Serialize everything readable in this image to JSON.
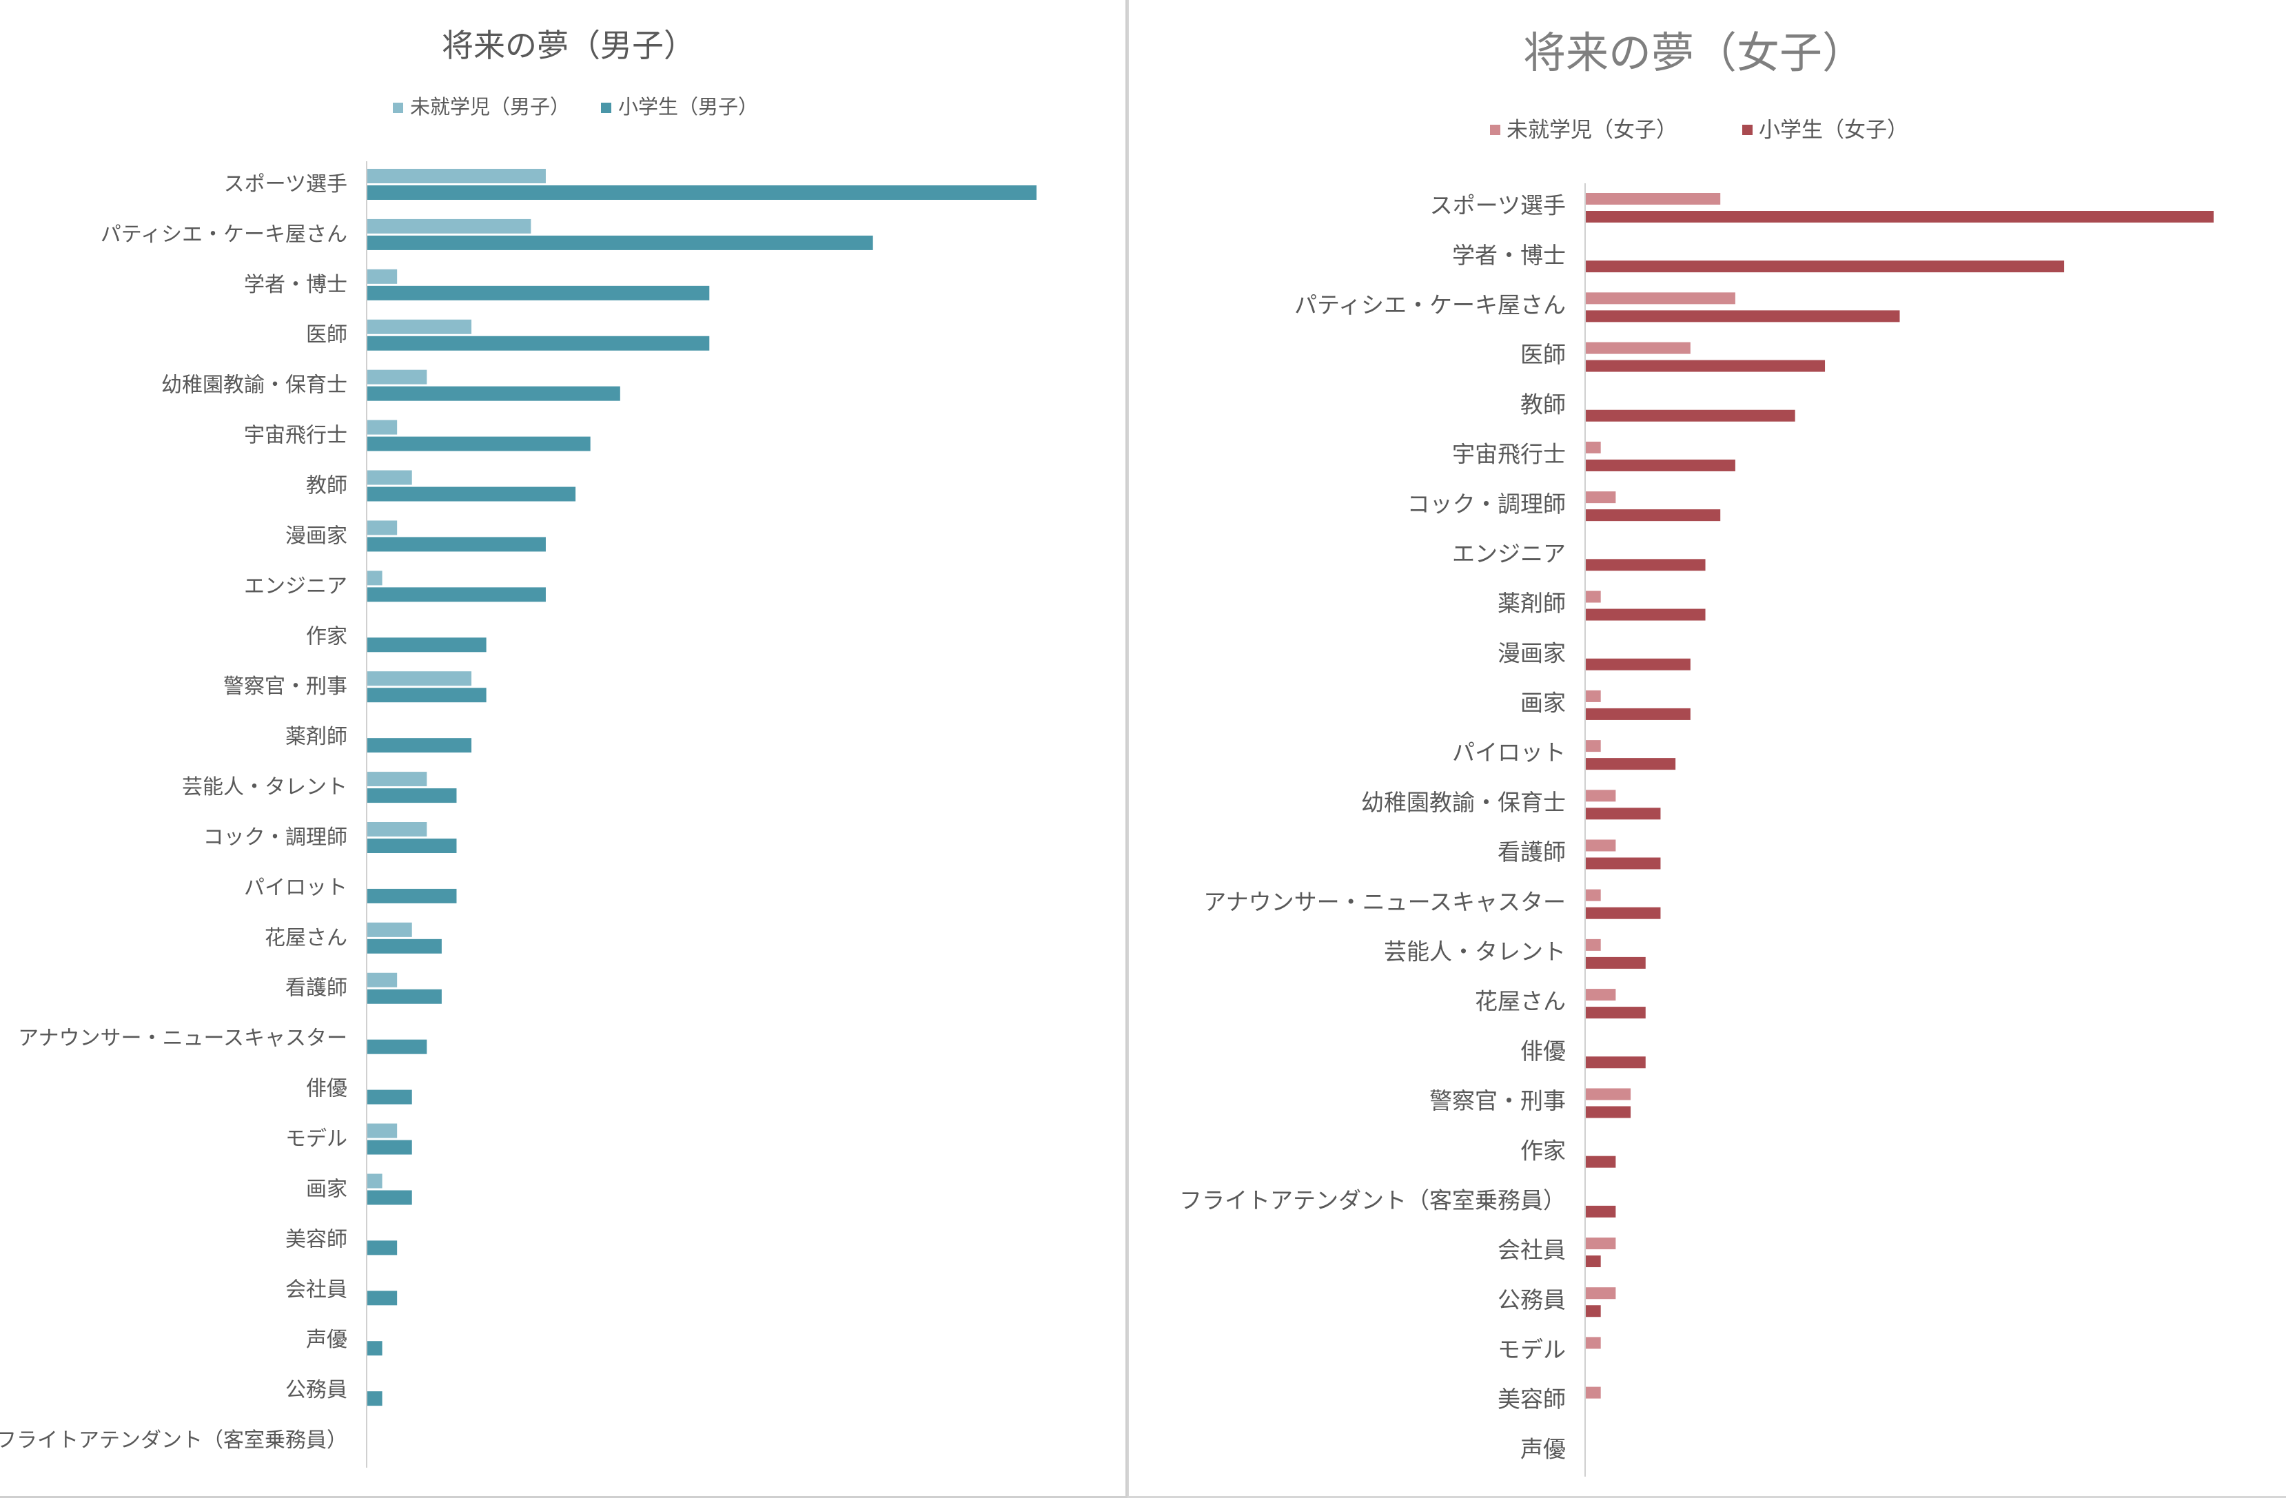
{
  "chart_data": [
    {
      "type": "bar",
      "orientation": "horizontal",
      "title": "将来の夢（男子）",
      "xlabel": "",
      "ylabel": "",
      "xlim": [
        0,
        45
      ],
      "grid": false,
      "legend_position": "top",
      "categories": [
        "スポーツ選手",
        "パティシエ・ケーキ屋さん",
        "学者・博士",
        "医師",
        "幼稚園教諭・保育士",
        "宇宙飛行士",
        "教師",
        "漫画家",
        "エンジニア",
        "作家",
        "警察官・刑事",
        "薬剤師",
        "芸能人・タレント",
        "コック・調理師",
        "パイロット",
        "花屋さん",
        "看護師",
        "アナウンサー・ニュースキャスター",
        "俳優",
        "モデル",
        "画家",
        "美容師",
        "会社員",
        "声優",
        "公務員",
        "フライトアテンダント（客室乗務員）"
      ],
      "series": [
        {
          "name": "未就学児（男子）",
          "color": "#8bbccb",
          "values": [
            12,
            11,
            2,
            7,
            4,
            2,
            3,
            2,
            1,
            0,
            7,
            0,
            4,
            4,
            0,
            3,
            2,
            0,
            0,
            2,
            1,
            0,
            0,
            0,
            0,
            0
          ]
        },
        {
          "name": "小学生（男子）",
          "color": "#4a96a8",
          "values": [
            45,
            34,
            23,
            23,
            17,
            15,
            14,
            12,
            12,
            8,
            8,
            7,
            6,
            6,
            6,
            5,
            5,
            4,
            3,
            3,
            3,
            2,
            2,
            1,
            1,
            0
          ]
        }
      ]
    },
    {
      "type": "bar",
      "orientation": "horizontal",
      "title": "将来の夢（女子）",
      "xlabel": "",
      "ylabel": "",
      "xlim": [
        0,
        42
      ],
      "grid": false,
      "legend_position": "top",
      "categories": [
        "スポーツ選手",
        "学者・博士",
        "パティシエ・ケーキ屋さん",
        "医師",
        "教師",
        "宇宙飛行士",
        "コック・調理師",
        "エンジニア",
        "薬剤師",
        "漫画家",
        "画家",
        "パイロット",
        "幼稚園教諭・保育士",
        "看護師",
        "アナウンサー・ニュースキャスター",
        "芸能人・タレント",
        "花屋さん",
        "俳優",
        "警察官・刑事",
        "作家",
        "フライトアテンダント（客室乗務員）",
        "会社員",
        "公務員",
        "モデル",
        "美容師",
        "声優"
      ],
      "series": [
        {
          "name": "未就学児（女子）",
          "color": "#d08a8f",
          "values": [
            9,
            0,
            10,
            7,
            0,
            1,
            2,
            0,
            1,
            0,
            1,
            1,
            2,
            2,
            1,
            1,
            2,
            0,
            3,
            0,
            0,
            2,
            2,
            1,
            1,
            0
          ]
        },
        {
          "name": "小学生（女子）",
          "color": "#a94a50",
          "values": [
            42,
            32,
            21,
            16,
            14,
            10,
            9,
            8,
            8,
            7,
            7,
            6,
            5,
            5,
            5,
            4,
            4,
            4,
            3,
            2,
            2,
            1,
            1,
            0,
            0,
            0
          ]
        }
      ]
    }
  ]
}
